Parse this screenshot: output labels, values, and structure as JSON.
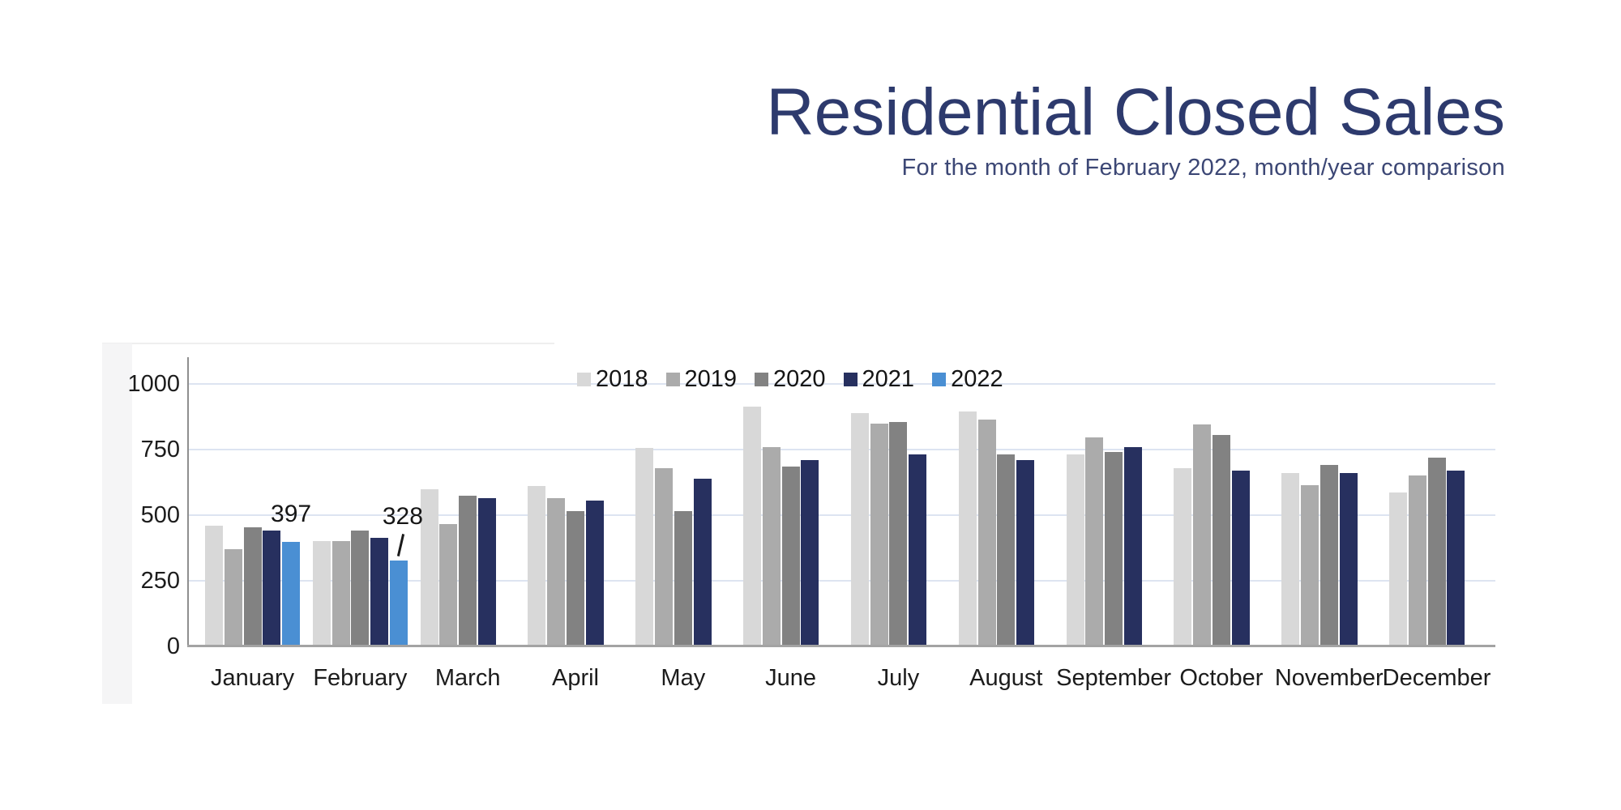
{
  "chart_data": {
    "type": "bar",
    "title": "Residential Closed Sales",
    "subtitle": "For the month of February 2022, month/year comparison",
    "categories": [
      "January",
      "February",
      "March",
      "April",
      "May",
      "June",
      "July",
      "August",
      "September",
      "October",
      "November",
      "December"
    ],
    "series": [
      {
        "name": "2018",
        "color": "#d8d8d8",
        "values": [
          460,
          400,
          600,
          610,
          755,
          915,
          890,
          895,
          730,
          680,
          660,
          585
        ]
      },
      {
        "name": "2019",
        "color": "#ababab",
        "values": [
          370,
          400,
          465,
          565,
          680,
          760,
          850,
          865,
          795,
          845,
          615,
          650
        ]
      },
      {
        "name": "2020",
        "color": "#828282",
        "values": [
          455,
          440,
          575,
          515,
          515,
          685,
          855,
          730,
          740,
          805,
          690,
          720
        ]
      },
      {
        "name": "2021",
        "color": "#27305f",
        "values": [
          440,
          415,
          565,
          555,
          640,
          710,
          730,
          710,
          760,
          670,
          660,
          670
        ]
      },
      {
        "name": "2022",
        "color": "#4a8fd3",
        "values": [
          397,
          328,
          null,
          null,
          null,
          null,
          null,
          null,
          null,
          null,
          null,
          null
        ]
      }
    ],
    "ylim": [
      0,
      1000
    ],
    "yticks": [
      0,
      250,
      500,
      750,
      1000
    ],
    "grid": true,
    "legend_position": "top-center",
    "annotations": [
      {
        "category": "January",
        "series": "2022",
        "text": "397",
        "leader": false
      },
      {
        "category": "February",
        "series": "2022",
        "text": "328",
        "leader": true
      }
    ]
  }
}
